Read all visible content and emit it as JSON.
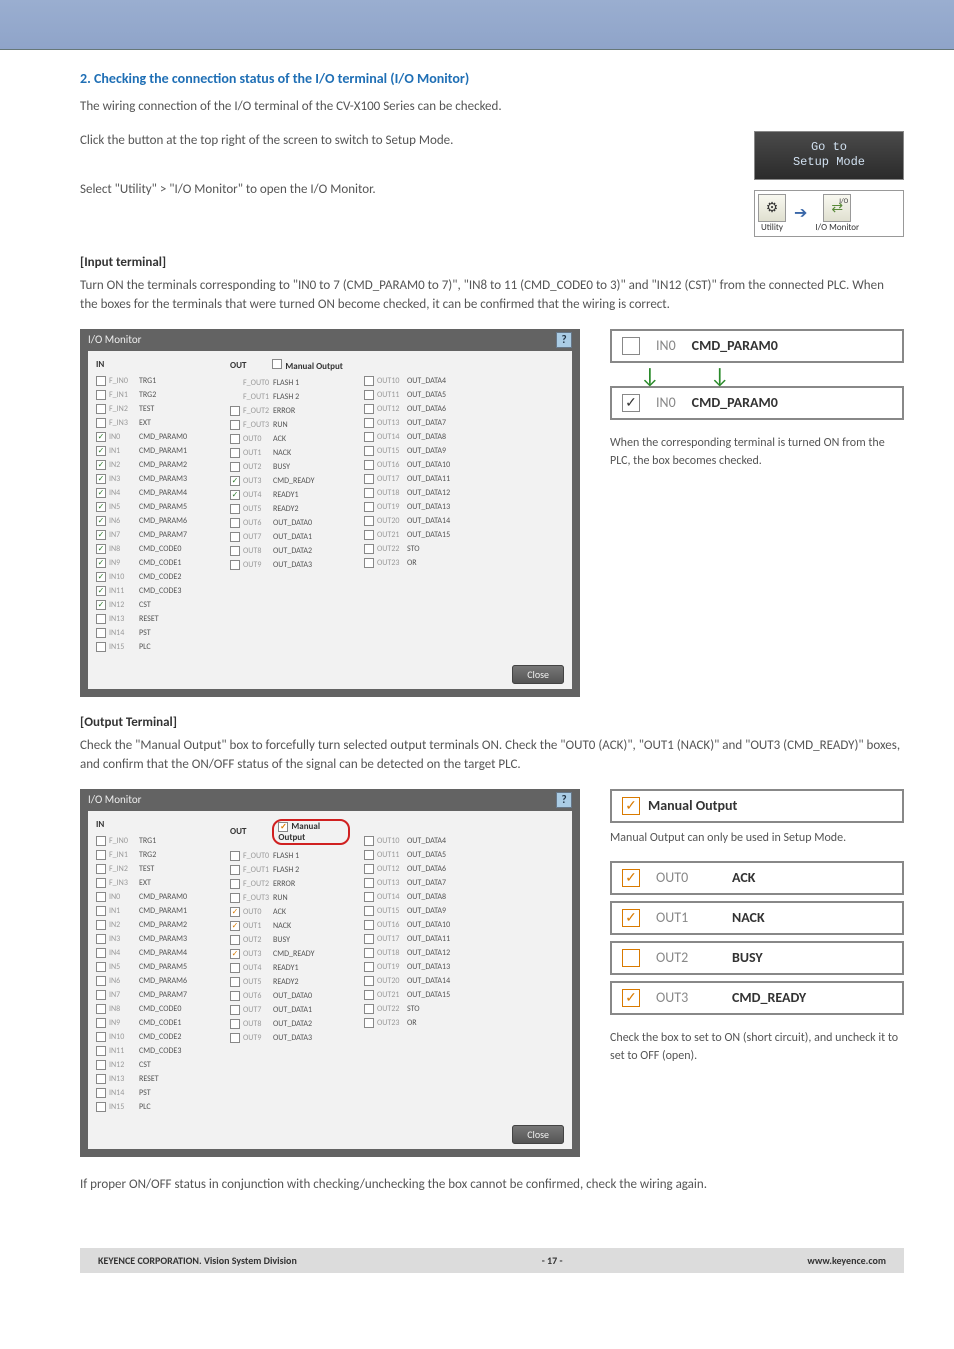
{
  "heading": "2. Checking the connection status of the I/O terminal (I/O Monitor)",
  "intro1": "The wiring connection of the I/O terminal of the CV-X100 Series can be checked.",
  "intro2": "Click the button at the top right of the screen to switch to Setup Mode.",
  "intro3": "Select \"Utility\" > \"I/O Monitor\" to open the I/O Monitor.",
  "setup_btn_l1": "Go to",
  "setup_btn_l2": "Setup Mode",
  "nav_utility": "Utility",
  "nav_iomonitor": "I/O Monitor",
  "nav_io_label": "I/O",
  "input_heading": "[Input terminal]",
  "input_para": "Turn ON the terminals corresponding to \"IN0 to 7 (CMD_PARAM0 to 7)\", \"IN8 to 11 (CMD_CODE0 to 3)\" and \"IN12 (CST)\" from the connected PLC. When the boxes for the terminals that were turned ON become checked, it can be confirmed that the wiring is correct.",
  "io_title": "I/O Monitor",
  "in_label": "IN",
  "out_label": "OUT",
  "manual_output_label": "Manual Output",
  "close_label": "Close",
  "input_callout_pin": "IN0",
  "input_callout_lbl": "CMD_PARAM0",
  "input_side_note": "When the corresponding terminal is turned ON from the PLC, the box becomes checked.",
  "output_heading": "[Output Terminal]",
  "output_para": "Check the \"Manual Output\" box to forcefully turn selected output terminals ON. Check the \"OUT0 (ACK)\", \"OUT1 (NACK)\" and \"OUT3 (CMD_READY)\" boxes, and confirm that the ON/OFF status of the signal can be detected on the target PLC.",
  "manual_output_zoom": "Manual Output",
  "manual_note": "Manual Output can only be used in Setup Mode.",
  "out_rows": [
    {
      "pin": "OUT0",
      "lbl": "ACK",
      "checked": true
    },
    {
      "pin": "OUT1",
      "lbl": "NACK",
      "checked": true
    },
    {
      "pin": "OUT2",
      "lbl": "BUSY",
      "checked": false
    },
    {
      "pin": "OUT3",
      "lbl": "CMD_READY",
      "checked": true
    }
  ],
  "out_side_note": "Check the box to set to ON (short circuit), and uncheck it to set to OFF (open).",
  "closing": "If proper ON/OFF status in conjunction with checking/unchecking the box cannot be confirmed, check the wiring again.",
  "footer_left": "KEYENCE CORPORATION. Vision System Division",
  "footer_mid": "- 17 -",
  "footer_right": "www.keyence.com",
  "io_in_col": [
    {
      "pin": "F_IN0",
      "lbl": "TRG1",
      "c": false
    },
    {
      "pin": "F_IN1",
      "lbl": "TRG2",
      "c": false
    },
    {
      "pin": "F_IN2",
      "lbl": "TEST",
      "c": false
    },
    {
      "pin": "F_IN3",
      "lbl": "EXT",
      "c": false
    },
    {
      "pin": "IN0",
      "lbl": "CMD_PARAM0",
      "c": true
    },
    {
      "pin": "IN1",
      "lbl": "CMD_PARAM1",
      "c": true
    },
    {
      "pin": "IN2",
      "lbl": "CMD_PARAM2",
      "c": true
    },
    {
      "pin": "IN3",
      "lbl": "CMD_PARAM3",
      "c": true
    },
    {
      "pin": "IN4",
      "lbl": "CMD_PARAM4",
      "c": true
    },
    {
      "pin": "IN5",
      "lbl": "CMD_PARAM5",
      "c": true
    },
    {
      "pin": "IN6",
      "lbl": "CMD_PARAM6",
      "c": true
    },
    {
      "pin": "IN7",
      "lbl": "CMD_PARAM7",
      "c": true
    },
    {
      "pin": "IN8",
      "lbl": "CMD_CODE0",
      "c": true
    },
    {
      "pin": "IN9",
      "lbl": "CMD_CODE1",
      "c": true
    },
    {
      "pin": "IN10",
      "lbl": "CMD_CODE2",
      "c": true
    },
    {
      "pin": "IN11",
      "lbl": "CMD_CODE3",
      "c": true
    },
    {
      "pin": "IN12",
      "lbl": "CST",
      "c": true
    },
    {
      "pin": "IN13",
      "lbl": "RESET",
      "c": false
    },
    {
      "pin": "IN14",
      "lbl": "PST",
      "c": false
    },
    {
      "pin": "IN15",
      "lbl": "PLC",
      "c": false
    }
  ],
  "io_out1": [
    {
      "pin": "F_OUT0",
      "lbl": "FLASH 1",
      "c": false,
      "nocb": true
    },
    {
      "pin": "F_OUT1",
      "lbl": "FLASH 2",
      "c": false,
      "nocb": true
    },
    {
      "pin": "F_OUT2",
      "lbl": "ERROR",
      "c": false
    },
    {
      "pin": "F_OUT3",
      "lbl": "RUN",
      "c": false
    },
    {
      "pin": "OUT0",
      "lbl": "ACK",
      "c": false
    },
    {
      "pin": "OUT1",
      "lbl": "NACK",
      "c": false
    },
    {
      "pin": "OUT2",
      "lbl": "BUSY",
      "c": false
    },
    {
      "pin": "OUT3",
      "lbl": "CMD_READY",
      "c": true
    },
    {
      "pin": "OUT4",
      "lbl": "READY1",
      "c": true
    },
    {
      "pin": "OUT5",
      "lbl": "READY2",
      "c": false
    },
    {
      "pin": "OUT6",
      "lbl": "OUT_DATA0",
      "c": false
    },
    {
      "pin": "OUT7",
      "lbl": "OUT_DATA1",
      "c": false
    },
    {
      "pin": "OUT8",
      "lbl": "OUT_DATA2",
      "c": false
    },
    {
      "pin": "OUT9",
      "lbl": "OUT_DATA3",
      "c": false
    }
  ],
  "io_out2": [
    {
      "pin": "OUT10",
      "lbl": "OUT_DATA4",
      "c": false
    },
    {
      "pin": "OUT11",
      "lbl": "OUT_DATA5",
      "c": false
    },
    {
      "pin": "OUT12",
      "lbl": "OUT_DATA6",
      "c": false
    },
    {
      "pin": "OUT13",
      "lbl": "OUT_DATA7",
      "c": false
    },
    {
      "pin": "OUT14",
      "lbl": "OUT_DATA8",
      "c": false
    },
    {
      "pin": "OUT15",
      "lbl": "OUT_DATA9",
      "c": false
    },
    {
      "pin": "OUT16",
      "lbl": "OUT_DATA10",
      "c": false
    },
    {
      "pin": "OUT17",
      "lbl": "OUT_DATA11",
      "c": false
    },
    {
      "pin": "OUT18",
      "lbl": "OUT_DATA12",
      "c": false
    },
    {
      "pin": "OUT19",
      "lbl": "OUT_DATA13",
      "c": false
    },
    {
      "pin": "OUT20",
      "lbl": "OUT_DATA14",
      "c": false
    },
    {
      "pin": "OUT21",
      "lbl": "OUT_DATA15",
      "c": false
    },
    {
      "pin": "OUT22",
      "lbl": "STO",
      "c": false
    },
    {
      "pin": "OUT23",
      "lbl": "OR",
      "c": false
    }
  ],
  "io_out1_b": [
    {
      "pin": "F_OUT0",
      "lbl": "FLASH 1",
      "c": false
    },
    {
      "pin": "F_OUT1",
      "lbl": "FLASH 2",
      "c": false
    },
    {
      "pin": "F_OUT2",
      "lbl": "ERROR",
      "c": false
    },
    {
      "pin": "F_OUT3",
      "lbl": "RUN",
      "c": false
    },
    {
      "pin": "OUT0",
      "lbl": "ACK",
      "c": true
    },
    {
      "pin": "OUT1",
      "lbl": "NACK",
      "c": true
    },
    {
      "pin": "OUT2",
      "lbl": "BUSY",
      "c": false
    },
    {
      "pin": "OUT3",
      "lbl": "CMD_READY",
      "c": true
    },
    {
      "pin": "OUT4",
      "lbl": "READY1",
      "c": false
    },
    {
      "pin": "OUT5",
      "lbl": "READY2",
      "c": false
    },
    {
      "pin": "OUT6",
      "lbl": "OUT_DATA0",
      "c": false
    },
    {
      "pin": "OUT7",
      "lbl": "OUT_DATA1",
      "c": false
    },
    {
      "pin": "OUT8",
      "lbl": "OUT_DATA2",
      "c": false
    },
    {
      "pin": "OUT9",
      "lbl": "OUT_DATA3",
      "c": false
    }
  ],
  "io_in_col_b": [
    {
      "pin": "F_IN0",
      "lbl": "TRG1",
      "c": false
    },
    {
      "pin": "F_IN1",
      "lbl": "TRG2",
      "c": false
    },
    {
      "pin": "F_IN2",
      "lbl": "TEST",
      "c": false
    },
    {
      "pin": "F_IN3",
      "lbl": "EXT",
      "c": false
    },
    {
      "pin": "IN0",
      "lbl": "CMD_PARAM0",
      "c": false
    },
    {
      "pin": "IN1",
      "lbl": "CMD_PARAM1",
      "c": false
    },
    {
      "pin": "IN2",
      "lbl": "CMD_PARAM2",
      "c": false
    },
    {
      "pin": "IN3",
      "lbl": "CMD_PARAM3",
      "c": false
    },
    {
      "pin": "IN4",
      "lbl": "CMD_PARAM4",
      "c": false
    },
    {
      "pin": "IN5",
      "lbl": "CMD_PARAM5",
      "c": false
    },
    {
      "pin": "IN6",
      "lbl": "CMD_PARAM6",
      "c": false
    },
    {
      "pin": "IN7",
      "lbl": "CMD_PARAM7",
      "c": false
    },
    {
      "pin": "IN8",
      "lbl": "CMD_CODE0",
      "c": false
    },
    {
      "pin": "IN9",
      "lbl": "CMD_CODE1",
      "c": false
    },
    {
      "pin": "IN10",
      "lbl": "CMD_CODE2",
      "c": false
    },
    {
      "pin": "IN11",
      "lbl": "CMD_CODE3",
      "c": false
    },
    {
      "pin": "IN12",
      "lbl": "CST",
      "c": false
    },
    {
      "pin": "IN13",
      "lbl": "RESET",
      "c": false
    },
    {
      "pin": "IN14",
      "lbl": "PST",
      "c": false
    },
    {
      "pin": "IN15",
      "lbl": "PLC",
      "c": false
    }
  ]
}
